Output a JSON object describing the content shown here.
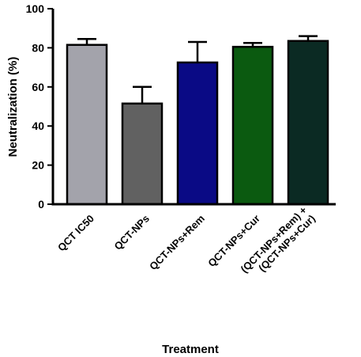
{
  "chart_data": {
    "type": "bar",
    "title": "",
    "xlabel": "Treatment",
    "ylabel": "Neutralization (%)",
    "ylim": [
      0,
      100
    ],
    "yticks": [
      0,
      20,
      40,
      60,
      80,
      100
    ],
    "categories": [
      {
        "lines": [
          "QCT IC50"
        ]
      },
      {
        "lines": [
          "QCT-NPs"
        ]
      },
      {
        "lines": [
          "QCT-NPs+Rem"
        ]
      },
      {
        "lines": [
          "QCT-NPs+Cur"
        ]
      },
      {
        "lines": [
          "(QCT-NPs+Rem) +",
          "(QCT-NPs+Cur)"
        ]
      }
    ],
    "values": [
      81.5,
      51.5,
      72.5,
      80.5,
      83.5
    ],
    "errors": [
      3.0,
      8.5,
      10.5,
      2.0,
      2.5
    ],
    "colors": [
      "#a3a3ab",
      "#616161",
      "#0a0a85",
      "#0b5a10",
      "#0b2a23"
    ],
    "grid": false,
    "legend": "none"
  }
}
